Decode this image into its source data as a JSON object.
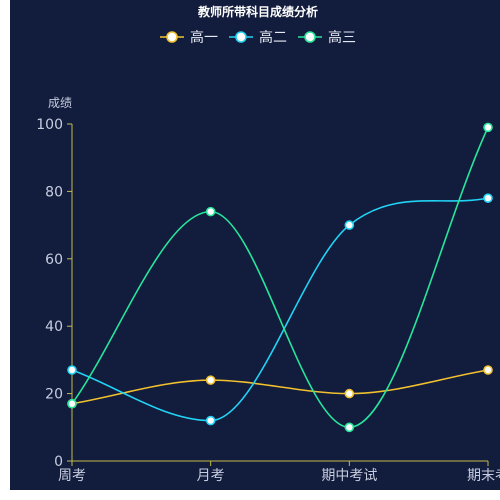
{
  "colors": {
    "panel_bg": "#121c3c",
    "axis": "#c4bb4e",
    "text": "#ffffff",
    "tick_text": "#c8cde0"
  },
  "chart_data": {
    "type": "line",
    "smooth": true,
    "title": "教师所带科目成绩分析",
    "ylabel": "成绩",
    "xlabel": "",
    "categories": [
      "周考",
      "月考",
      "期中考试",
      "期末考"
    ],
    "ylim": [
      0,
      100
    ],
    "yticks": [
      0,
      20,
      40,
      60,
      80,
      100
    ],
    "grid": false,
    "legend_position": "top-center",
    "series": [
      {
        "name": "高一",
        "color": "#f2c12e",
        "values": [
          17,
          24,
          20,
          27
        ]
      },
      {
        "name": "高二",
        "color": "#22d3f5",
        "values": [
          27,
          12,
          70,
          78
        ]
      },
      {
        "name": "高三",
        "color": "#27e59b",
        "values": [
          17,
          74,
          10,
          99
        ]
      }
    ]
  }
}
